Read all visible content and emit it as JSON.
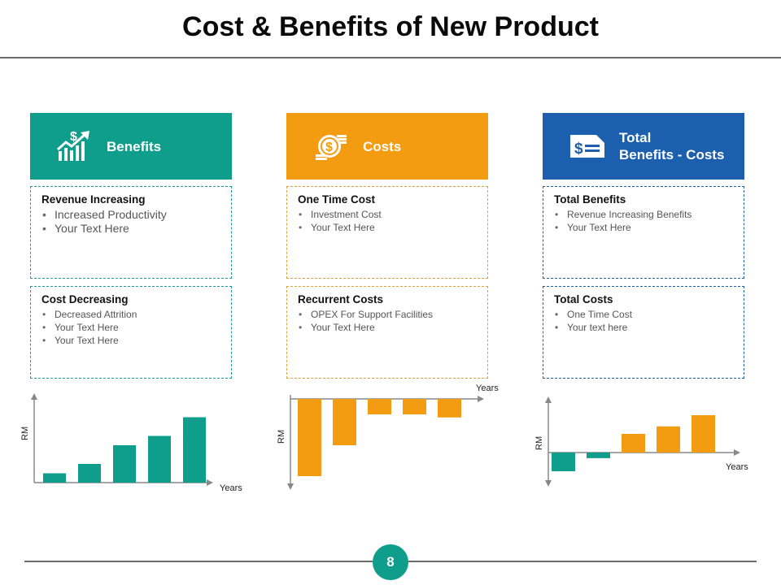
{
  "title": "Cost & Benefits of New Product",
  "page_number": "8",
  "colors": {
    "teal": "#0f9e8c",
    "orange": "#f39c12",
    "blue": "#1b5fae"
  },
  "columns": [
    {
      "header_icon": "money-growth-icon",
      "header_lines": [
        "Benefits"
      ],
      "boxes": [
        {
          "title": "Revenue Increasing",
          "items": [
            "Increased Productivity",
            "Your Text Here"
          ]
        },
        {
          "title": "Cost Decreasing",
          "items": [
            "Decreased Attrition",
            "Your Text Here",
            "Your Text Here"
          ]
        }
      ]
    },
    {
      "header_icon": "coins-icon",
      "header_lines": [
        "Costs"
      ],
      "boxes": [
        {
          "title": "One Time Cost",
          "items": [
            "Investment Cost",
            "Your Text Here"
          ]
        },
        {
          "title": "Recurrent Costs",
          "items": [
            "OPEX For Support Facilities",
            "Your Text Here"
          ]
        }
      ]
    },
    {
      "header_icon": "dollar-check-icon",
      "header_lines": [
        "Total",
        "Benefits - Costs"
      ],
      "boxes": [
        {
          "title": "Total Benefits",
          "items": [
            "Revenue  Increasing Benefits",
            "Your Text Here"
          ]
        },
        {
          "title": "Total Costs",
          "items": [
            "One Time Cost",
            "Your text here"
          ]
        }
      ]
    }
  ],
  "chart_data": [
    {
      "type": "bar",
      "xlabel": "Years",
      "ylabel": "RM",
      "values": [
        1,
        2,
        4,
        5,
        7
      ],
      "ylim": [
        0,
        7
      ],
      "color": "#0f9e8c"
    },
    {
      "type": "bar",
      "xlabel": "Years",
      "ylabel": "RM",
      "values": [
        -5,
        -3,
        -1,
        -1,
        -1.2
      ],
      "ylim": [
        -5,
        0
      ],
      "color": "#f39c12"
    },
    {
      "type": "bar",
      "xlabel": "Years",
      "ylabel": "RM",
      "values": [
        -1,
        -0.3,
        1,
        1.4,
        2
      ],
      "ylim": [
        -1,
        2
      ],
      "negative_color": "#0f9e8c",
      "positive_color": "#f39c12"
    }
  ]
}
